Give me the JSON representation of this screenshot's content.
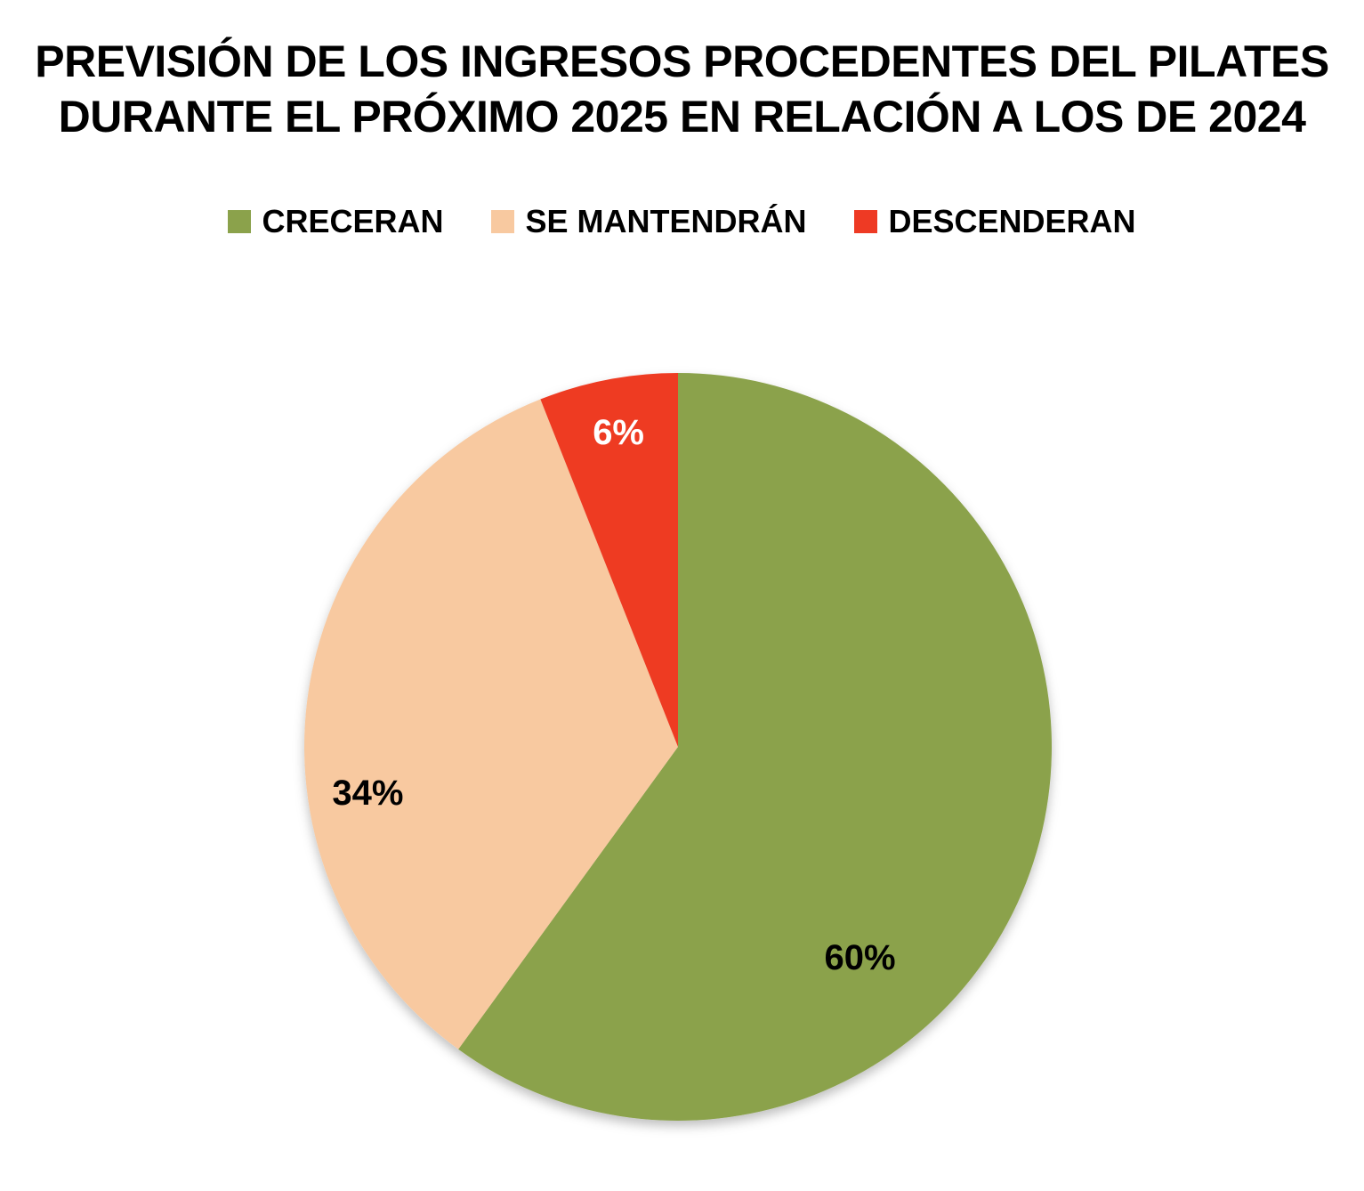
{
  "chart_data": {
    "type": "pie",
    "title_lines": [
      "PREVISIÓN DE LOS INGRESOS PROCEDENTES DEL PILATES",
      "DURANTE EL PRÓXIMO 2025 EN RELACIÓN A LOS DE 2024"
    ],
    "legend_position": "top",
    "slices": [
      {
        "name": "CRECERAN",
        "value": 60,
        "label": "60%",
        "color": "#8ba24b",
        "label_color": "#000000"
      },
      {
        "name": "SE MANTENDRÁN",
        "value": 34,
        "label": "34%",
        "color": "#f8c9a0",
        "label_color": "#000000"
      },
      {
        "name": "DESCENDERAN",
        "value": 6,
        "label": "6%",
        "color": "#ee3a24",
        "label_color": "#ffffff"
      }
    ],
    "start_angle": "12 o'clock",
    "direction": "clockwise"
  }
}
